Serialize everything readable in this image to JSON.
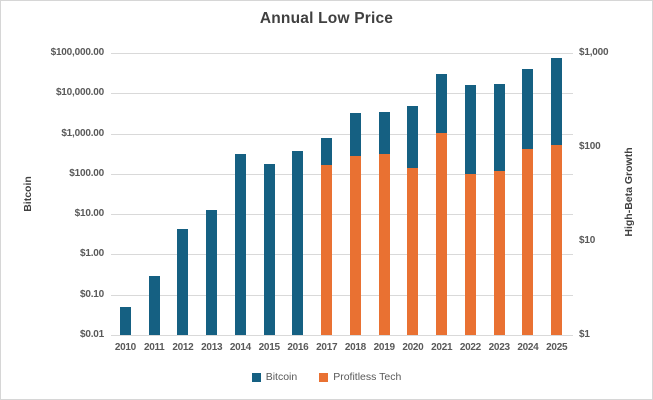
{
  "title": "Annual Low Price",
  "colors": {
    "bitcoin": "#156082",
    "profitless_tech": "#E97132",
    "gridline": "#d9d9d9",
    "axis_text": "#595959",
    "title_text": "#404040"
  },
  "legend": {
    "items": [
      {
        "label": "Bitcoin",
        "color": "#156082"
      },
      {
        "label": "Profitless Tech",
        "color": "#E97132"
      }
    ]
  },
  "chart_data": {
    "type": "bar",
    "title": "Annual Low Price",
    "log_scale": true,
    "grid": "horizontal",
    "legend_position": "bottom",
    "categories": [
      "2010",
      "2011",
      "2012",
      "2013",
      "2014",
      "2015",
      "2016",
      "2017",
      "2018",
      "2019",
      "2020",
      "2021",
      "2022",
      "2023",
      "2024",
      "2025"
    ],
    "series": [
      {
        "name": "Bitcoin",
        "axis": "left",
        "color": "#156082",
        "values": [
          0.05,
          0.3,
          4.25,
          13,
          310,
          175,
          365,
          780,
          3200,
          3400,
          4900,
          30000,
          16000,
          16800,
          40000,
          75000
        ]
      },
      {
        "name": "Profitless Tech",
        "axis": "right",
        "color": "#E97132",
        "values": [
          null,
          null,
          null,
          null,
          null,
          null,
          null,
          65,
          80,
          85,
          60,
          140,
          52,
          55,
          95,
          105
        ]
      }
    ],
    "left_axis": {
      "title": "Bitcoin",
      "min": 0.01,
      "max": 100000,
      "ticks": [
        {
          "v": 100000,
          "label": "$100,000.00"
        },
        {
          "v": 10000,
          "label": "$10,000.00"
        },
        {
          "v": 1000,
          "label": "$1,000.00"
        },
        {
          "v": 100,
          "label": "$100.00"
        },
        {
          "v": 10,
          "label": "$10.00"
        },
        {
          "v": 1,
          "label": "$1.00"
        },
        {
          "v": 0.1,
          "label": "$0.10"
        },
        {
          "v": 0.01,
          "label": "$0.01"
        }
      ]
    },
    "right_axis": {
      "title": "High-Beta Growth",
      "min": 1,
      "max": 1000,
      "ticks": [
        {
          "v": 1000,
          "label": "$1,000"
        },
        {
          "v": 100,
          "label": "$100"
        },
        {
          "v": 10,
          "label": "$10"
        },
        {
          "v": 1,
          "label": "$1"
        }
      ]
    }
  }
}
